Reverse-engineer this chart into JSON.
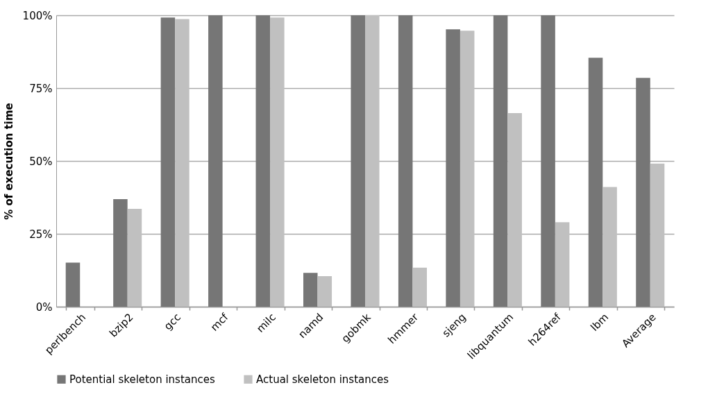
{
  "chart_data": {
    "type": "bar",
    "ylabel": "% of execution time",
    "categories": [
      "perlbench",
      "bzip2",
      "gcc",
      "mcf",
      "milc",
      "namd",
      "gobmk",
      "hmmer",
      "sjeng",
      "libquantum",
      "h264ref",
      "lbm",
      "Average"
    ],
    "series": [
      {
        "name": "Potential skeleton instances",
        "color": "#767676",
        "values": [
          15.1,
          36.9,
          99.2,
          100,
          100,
          11.6,
          100,
          100,
          95.2,
          100,
          100,
          85.4,
          78.5
        ]
      },
      {
        "name": "Actual skeleton instances",
        "color": "#c0c0c0",
        "values": [
          0,
          33.6,
          98.7,
          0,
          99.2,
          10.5,
          100,
          13.4,
          94.7,
          66.4,
          29.0,
          41.1,
          49.1
        ]
      }
    ],
    "ylim": [
      0,
      100
    ],
    "yticks": [
      {
        "value": 0,
        "label": "0%"
      },
      {
        "value": 25,
        "label": "25%"
      },
      {
        "value": 50,
        "label": "50%"
      },
      {
        "value": 75,
        "label": "75%"
      },
      {
        "value": 100,
        "label": "100%"
      }
    ],
    "grid": "y",
    "legend": "bottom"
  }
}
